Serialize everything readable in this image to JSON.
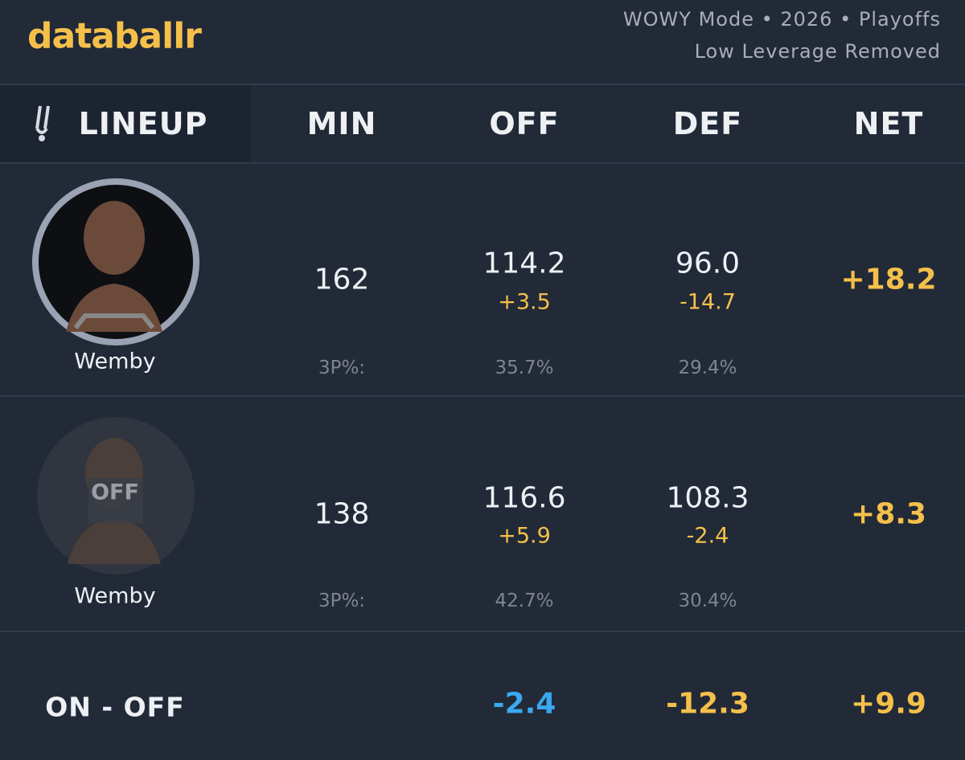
{
  "header": {
    "logo": "databallr",
    "info": [
      "WOWY Mode • 2026 • Playoffs",
      "Low Leverage Removed"
    ]
  },
  "columns": [
    "LINEUP",
    "MIN",
    "OFF",
    "DEF",
    "NET"
  ],
  "rows": [
    {
      "player": "Wemby",
      "min": "162",
      "off": "114.2",
      "off_diff": "+3.5",
      "def": "96.0",
      "def_diff": "-14.7",
      "net": "+18.2",
      "three_label": "3P%:",
      "off_3p": "35.7%",
      "def_3p": "29.4%"
    },
    {
      "player": "Wemby",
      "status": "OFF",
      "min": "138",
      "off": "116.6",
      "off_diff": "+5.9",
      "def": "108.3",
      "def_diff": "-2.4",
      "net": "+8.3",
      "three_label": "3P%:",
      "off_3p": "42.7%",
      "def_3p": "30.4%"
    }
  ],
  "summary": {
    "label": "ON - OFF",
    "off": "-2.4",
    "def": "-12.3",
    "net": "+9.9"
  }
}
